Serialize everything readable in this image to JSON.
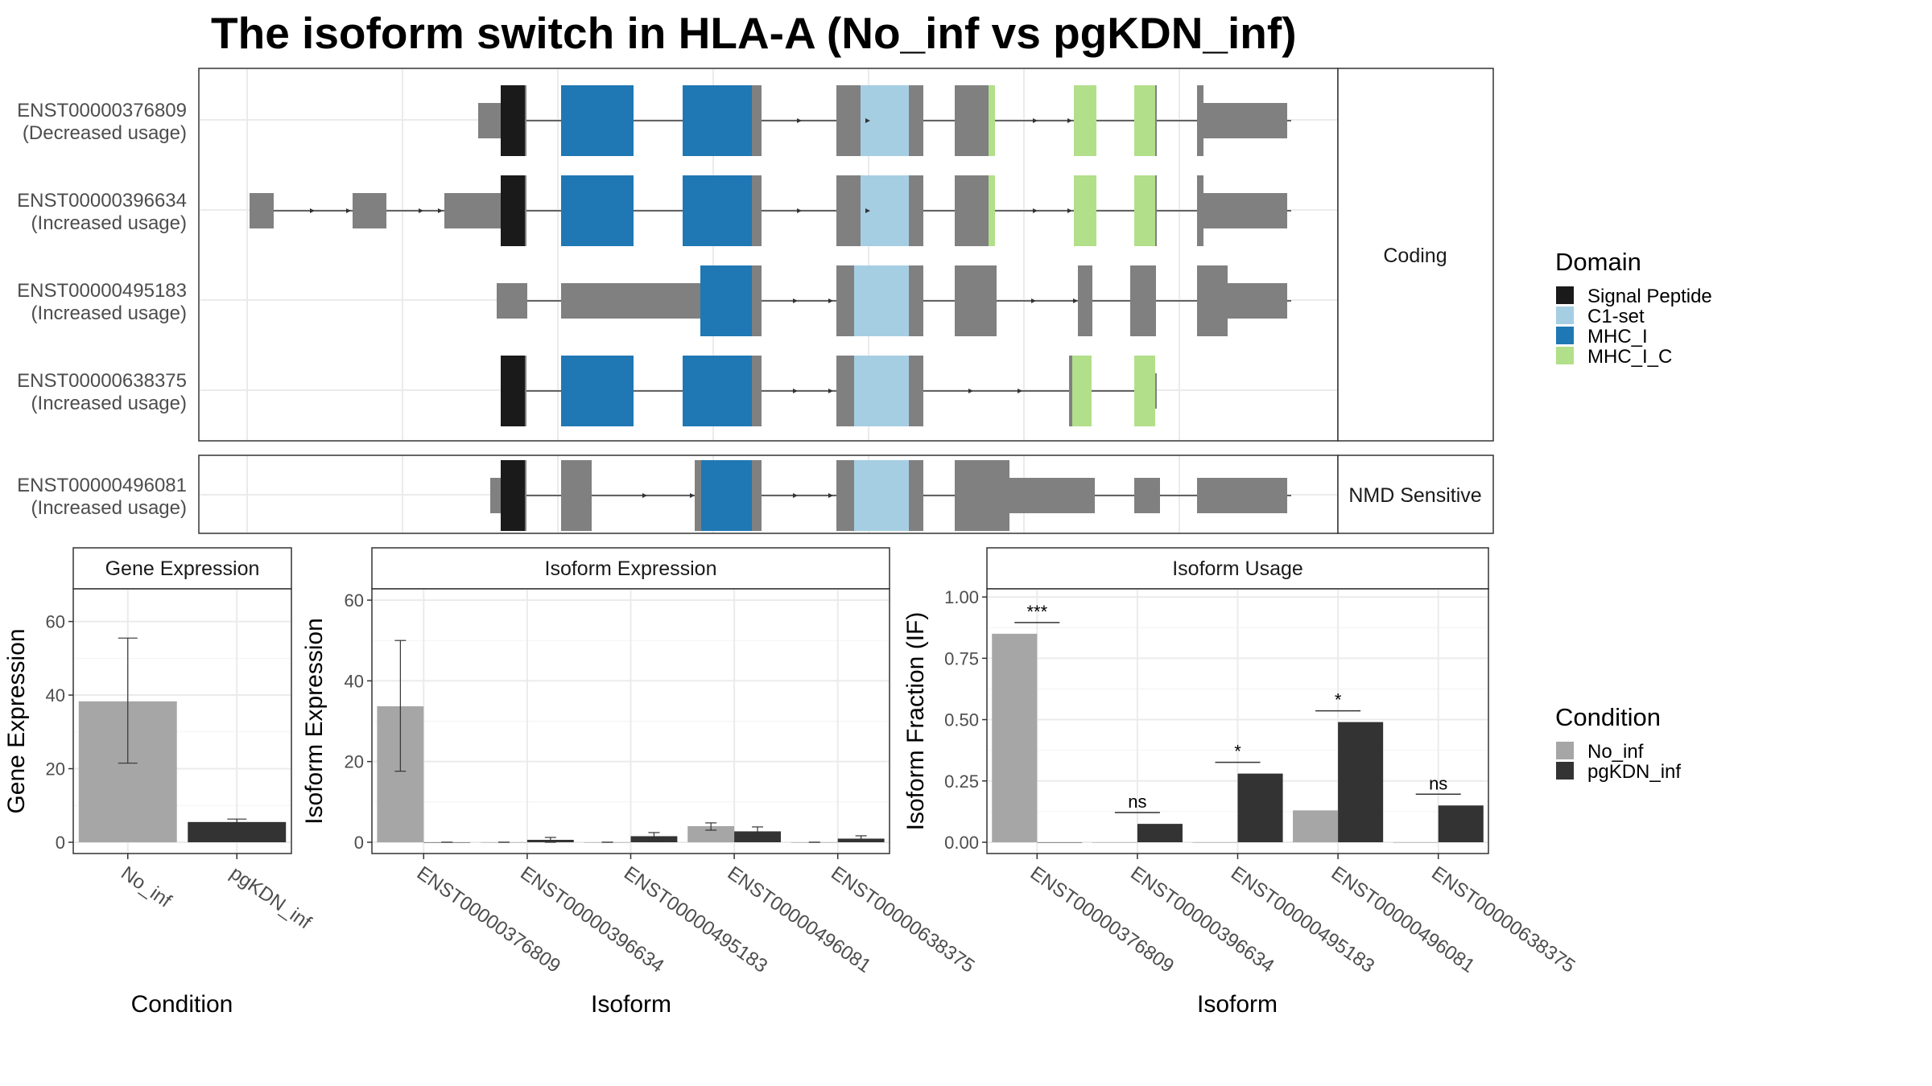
{
  "title": "The isoform switch in HLA-A (No_inf vs pgKDN_inf)",
  "colors": {
    "no_inf": "#a6a6a6",
    "pgkdn_inf": "#333333",
    "signal_peptide": "#1a1a1a",
    "c1_set": "#a6cee3",
    "mhc_i": "#1f78b4",
    "mhc_i_c": "#b2df8a",
    "exon_gray": "#808080"
  },
  "structure": {
    "panels": [
      {
        "strip": "Coding",
        "transcripts": [
          {
            "id": "ENST00000376809",
            "usage": "(Decreased usage)"
          },
          {
            "id": "ENST00000396634",
            "usage": "(Increased usage)"
          },
          {
            "id": "ENST00000495183",
            "usage": "(Increased usage)"
          },
          {
            "id": "ENST00000638375",
            "usage": "(Increased usage)"
          }
        ]
      },
      {
        "strip": "NMD Sensitive",
        "transcripts": [
          {
            "id": "ENST00000496081",
            "usage": "(Increased usage)"
          }
        ]
      }
    ]
  },
  "legend_domain": {
    "title": "Domain",
    "items": [
      {
        "label": "Signal Peptide",
        "color": "#1a1a1a"
      },
      {
        "label": "C1-set",
        "color": "#a6cee3"
      },
      {
        "label": "MHC_I",
        "color": "#1f78b4"
      },
      {
        "label": "MHC_I_C",
        "color": "#b2df8a"
      }
    ]
  },
  "legend_condition": {
    "title": "Condition",
    "items": [
      {
        "label": "No_inf",
        "color": "#a6a6a6"
      },
      {
        "label": "pgKDN_inf",
        "color": "#333333"
      }
    ]
  },
  "chart_data": [
    {
      "type": "bar",
      "title": "Gene Expression",
      "xlabel": "Condition",
      "ylabel": "Gene Expression",
      "ylim": [
        0,
        68
      ],
      "yticks": [
        0,
        20,
        40,
        60
      ],
      "categories": [
        "No_inf",
        "pgKDN_inf"
      ],
      "values": [
        38.3,
        5.5
      ],
      "error_low": [
        21.5,
        4.6
      ],
      "error_high": [
        55.5,
        6.3
      ]
    },
    {
      "type": "bar",
      "title": "Isoform Expression",
      "xlabel": "Isoform",
      "ylabel": "Isoform Expression",
      "ylim": [
        0,
        62
      ],
      "yticks": [
        0,
        20,
        40,
        60
      ],
      "categories": [
        "ENST00000376809",
        "ENST00000396634",
        "ENST00000495183",
        "ENST00000496081",
        "ENST00000638375"
      ],
      "series": [
        {
          "name": "No_inf",
          "values": [
            33.7,
            0.0,
            0.0,
            4.0,
            0.0
          ],
          "error_low": [
            17.6,
            0.0,
            0.0,
            3.0,
            0.0
          ],
          "error_high": [
            50.0,
            0.0,
            0.0,
            4.8,
            0.0
          ]
        },
        {
          "name": "pgKDN_inf",
          "values": [
            0.0,
            0.6,
            1.5,
            2.7,
            0.9
          ],
          "error_low": [
            0.0,
            0.0,
            0.5,
            1.5,
            0.3
          ],
          "error_high": [
            0.0,
            1.2,
            2.4,
            3.8,
            1.6
          ]
        }
      ]
    },
    {
      "type": "bar",
      "title": "Isoform Usage",
      "xlabel": "Isoform",
      "ylabel": "Isoform Fraction (IF)",
      "ylim": [
        0,
        1.02
      ],
      "yticks": [
        "0.00",
        "0.25",
        "0.50",
        "0.75",
        "1.00"
      ],
      "categories": [
        "ENST00000376809",
        "ENST00000396634",
        "ENST00000495183",
        "ENST00000496081",
        "ENST00000638375"
      ],
      "series": [
        {
          "name": "No_inf",
          "values": [
            0.85,
            0.0,
            0.0,
            0.13,
            0.0
          ]
        },
        {
          "name": "pgKDN_inf",
          "values": [
            0.0,
            0.075,
            0.28,
            0.49,
            0.15
          ]
        }
      ],
      "significance": [
        "***",
        "ns",
        "*",
        "*",
        "ns"
      ]
    }
  ]
}
